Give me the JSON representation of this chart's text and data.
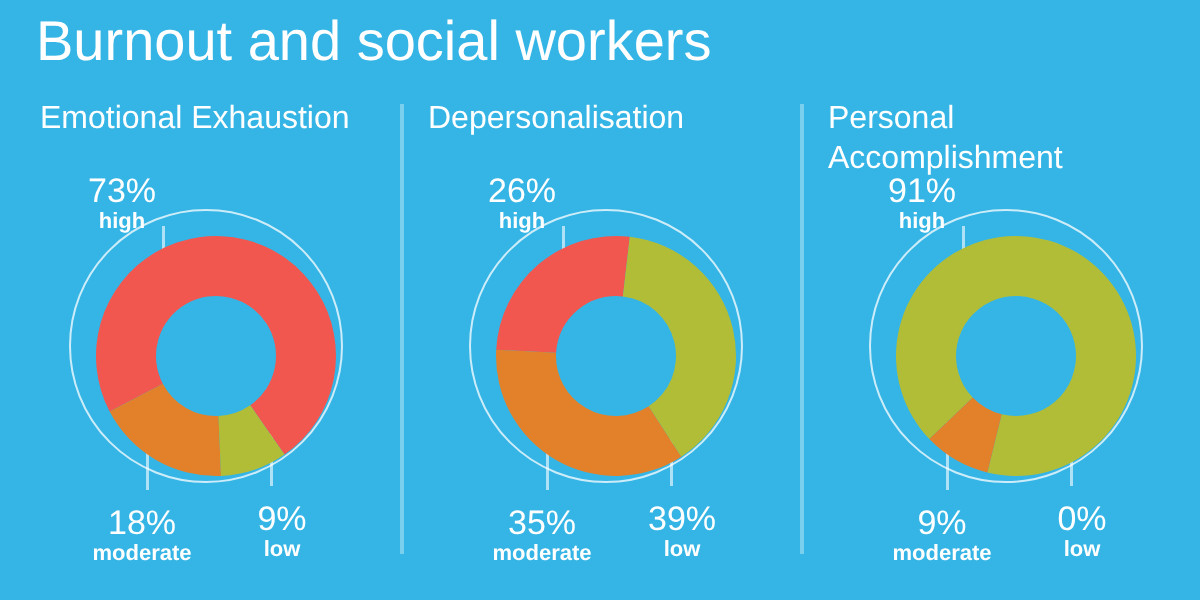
{
  "chart_data": [
    {
      "type": "donut",
      "title": "Emotional Exhaustion",
      "annotations": [
        "Burnout and social workers"
      ],
      "categories": [
        "high",
        "moderate",
        "low"
      ],
      "values": [
        73,
        18,
        9
      ],
      "colors": [
        "#f2574f",
        "#e3802a",
        "#b2bd37"
      ],
      "value_labels": [
        "73%",
        "18%",
        "9%"
      ]
    },
    {
      "type": "donut",
      "title": "Depersonalisation",
      "categories": [
        "high",
        "moderate",
        "low"
      ],
      "values": [
        26,
        35,
        39
      ],
      "colors": [
        "#f2574f",
        "#e3802a",
        "#b2bd37"
      ],
      "value_labels": [
        "26%",
        "35%",
        "39%"
      ]
    },
    {
      "type": "donut",
      "title": "Personal Accomplishment",
      "categories": [
        "high",
        "moderate",
        "low"
      ],
      "values": [
        91,
        9,
        0
      ],
      "colors": [
        "#b2bd37",
        "#e3802a",
        "#f2574f"
      ],
      "value_labels": [
        "91%",
        "9%",
        "0%"
      ]
    }
  ]
}
